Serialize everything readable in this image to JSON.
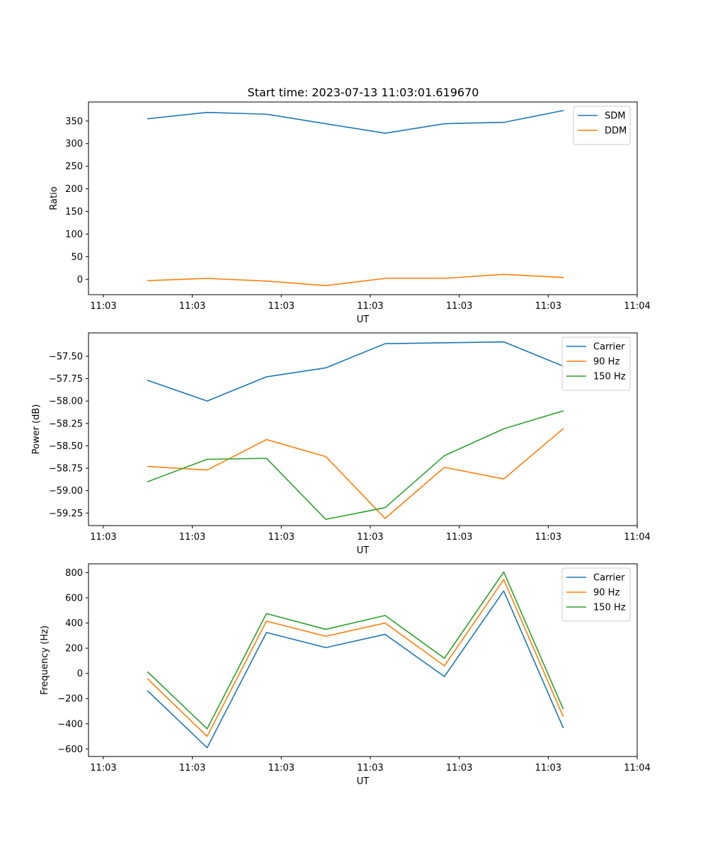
{
  "title": "Start time: 2023-07-13 11:03:01.619670",
  "chart_data": [
    {
      "type": "line",
      "ylabel": "Ratio",
      "xlabel": "UT",
      "xlim": [
        0,
        9.25
      ],
      "ylim": [
        -34,
        392
      ],
      "yticks": [
        0,
        50,
        100,
        150,
        200,
        250,
        300,
        350
      ],
      "xticks": [
        0.25,
        1.75,
        3.25,
        4.75,
        6.25,
        7.75,
        9.25
      ],
      "xtick_labels": [
        "11:03",
        "11:03",
        "11:03",
        "11:03",
        "11:03",
        "11:03",
        "11:04"
      ],
      "x": [
        1,
        2,
        3,
        4,
        5,
        6,
        7,
        8
      ],
      "legend_loc": "upper right",
      "series": [
        {
          "name": "SDM",
          "color": "#1f77b4",
          "values": [
            355,
            369,
            365,
            344,
            323,
            344,
            347,
            373
          ]
        },
        {
          "name": "DDM",
          "color": "#ff7f0e",
          "values": [
            -3,
            2,
            -4,
            -14,
            2,
            2,
            11,
            4
          ]
        }
      ]
    },
    {
      "type": "line",
      "ylabel": "Power (dB)",
      "xlabel": "UT",
      "xlim": [
        0,
        9.25
      ],
      "ylim": [
        -59.39,
        -57.24
      ],
      "yticks": [
        -59.25,
        -59.0,
        -58.75,
        -58.5,
        -58.25,
        -58.0,
        -57.75,
        -57.5
      ],
      "ytick_labels": [
        "−59.25",
        "−59.00",
        "−58.75",
        "−58.50",
        "−58.25",
        "−58.00",
        "−57.75",
        "−57.50"
      ],
      "xticks": [
        0.25,
        1.75,
        3.25,
        4.75,
        6.25,
        7.75,
        9.25
      ],
      "xtick_labels": [
        "11:03",
        "11:03",
        "11:03",
        "11:03",
        "11:03",
        "11:03",
        "11:04"
      ],
      "x": [
        1,
        2,
        3,
        4,
        5,
        6,
        7,
        8
      ],
      "legend_loc": "upper right",
      "series": [
        {
          "name": "Carrier",
          "color": "#1f77b4",
          "values": [
            -57.77,
            -58.0,
            -57.73,
            -57.63,
            -57.36,
            -57.35,
            -57.34,
            -57.61
          ]
        },
        {
          "name": "90 Hz",
          "color": "#ff7f0e",
          "values": [
            -58.73,
            -58.77,
            -58.43,
            -58.62,
            -59.31,
            -58.74,
            -58.87,
            -58.31
          ]
        },
        {
          "name": "150 Hz",
          "color": "#2ca02c",
          "values": [
            -58.9,
            -58.65,
            -58.64,
            -59.32,
            -59.19,
            -58.61,
            -58.31,
            -58.11
          ]
        }
      ]
    },
    {
      "type": "line",
      "ylabel": "Frequency (Hz)",
      "xlabel": "UT",
      "xlim": [
        0,
        9.25
      ],
      "ylim": [
        -660,
        870
      ],
      "yticks": [
        -600,
        -400,
        -200,
        0,
        200,
        400,
        600,
        800
      ],
      "ytick_labels": [
        "−600",
        "−400",
        "−200",
        "0",
        "200",
        "400",
        "600",
        "800"
      ],
      "xticks": [
        0.25,
        1.75,
        3.25,
        4.75,
        6.25,
        7.75,
        9.25
      ],
      "xtick_labels": [
        "11:03",
        "11:03",
        "11:03",
        "11:03",
        "11:03",
        "11:03",
        "11:04"
      ],
      "x": [
        1,
        2,
        3,
        4,
        5,
        6,
        7,
        8
      ],
      "legend_loc": "upper right",
      "series": [
        {
          "name": "Carrier",
          "color": "#1f77b4",
          "values": [
            -140,
            -590,
            325,
            205,
            310,
            -25,
            655,
            -430
          ]
        },
        {
          "name": "90 Hz",
          "color": "#ff7f0e",
          "values": [
            -45,
            -500,
            415,
            295,
            400,
            60,
            745,
            -340
          ]
        },
        {
          "name": "150 Hz",
          "color": "#2ca02c",
          "values": [
            10,
            -440,
            475,
            350,
            460,
            120,
            805,
            -280
          ]
        }
      ]
    }
  ]
}
